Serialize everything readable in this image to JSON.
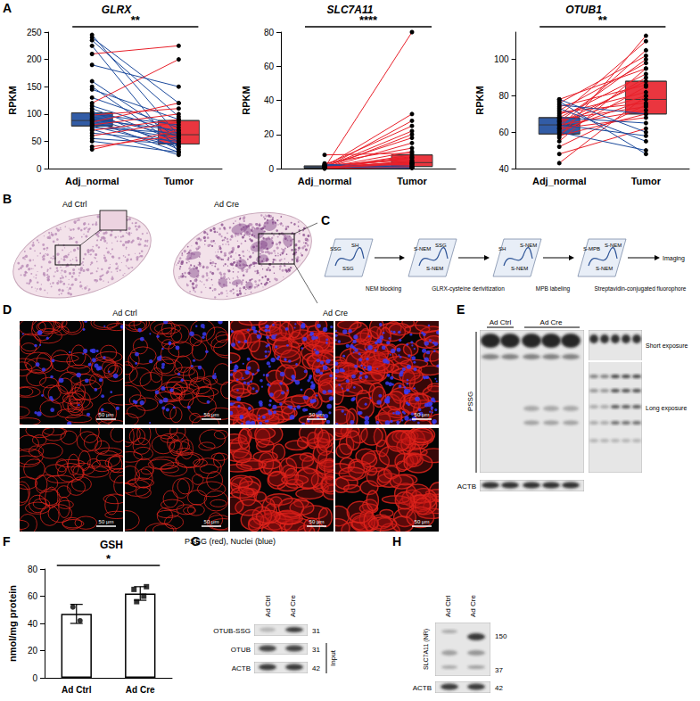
{
  "chart_data": [
    {
      "type": "box",
      "panel": "A",
      "title": "GLRX",
      "y_label": "RPKM",
      "categories": [
        "Adj_normal",
        "Tumor"
      ],
      "colors": [
        "#1c4a9c",
        "#e8202a"
      ],
      "ylim": [
        0,
        250
      ],
      "yticks": [
        0,
        50,
        100,
        150,
        200,
        250
      ],
      "box": [
        [
          78,
          88,
          102
        ],
        [
          45,
          62,
          88
        ]
      ],
      "pairs": [
        [
          245,
          60
        ],
        [
          240,
          120
        ],
        [
          235,
          95
        ],
        [
          225,
          30
        ],
        [
          210,
          225
        ],
        [
          190,
          150
        ],
        [
          160,
          55
        ],
        [
          150,
          40
        ],
        [
          145,
          90
        ],
        [
          130,
          75
        ],
        [
          120,
          200
        ],
        [
          115,
          65
        ],
        [
          110,
          50
        ],
        [
          105,
          35
        ],
        [
          100,
          80
        ],
        [
          98,
          110
        ],
        [
          95,
          60
        ],
        [
          92,
          45
        ],
        [
          90,
          70
        ],
        [
          88,
          30
        ],
        [
          85,
          120
        ],
        [
          82,
          55
        ],
        [
          80,
          100
        ],
        [
          78,
          40
        ],
        [
          75,
          65
        ],
        [
          72,
          25
        ],
        [
          70,
          90
        ],
        [
          65,
          50
        ],
        [
          60,
          85
        ],
        [
          55,
          45
        ],
        [
          50,
          30
        ],
        [
          40,
          60
        ],
        [
          35,
          70
        ]
      ],
      "significance": "**"
    },
    {
      "type": "box",
      "title": "SLC7A11",
      "y_label": "RPKM",
      "categories": [
        "Adj_normal",
        "Tumor"
      ],
      "colors": [
        "#1c4a9c",
        "#e8202a"
      ],
      "ylim": [
        0,
        80
      ],
      "yticks": [
        0,
        20,
        40,
        60,
        80
      ],
      "box": [
        [
          0.3,
          0.6,
          1.5
        ],
        [
          1.2,
          3.5,
          8
        ]
      ],
      "pairs": [
        [
          0.5,
          80
        ],
        [
          1,
          32
        ],
        [
          0.3,
          28
        ],
        [
          2,
          25
        ],
        [
          0.8,
          22
        ],
        [
          0.2,
          20
        ],
        [
          1.5,
          18
        ],
        [
          0.4,
          15
        ],
        [
          3,
          12
        ],
        [
          0.6,
          10
        ],
        [
          8,
          9
        ],
        [
          0.1,
          8
        ],
        [
          1,
          7
        ],
        [
          0.5,
          6
        ],
        [
          2,
          5
        ],
        [
          0.3,
          4.5
        ],
        [
          0.7,
          4
        ],
        [
          1.2,
          3.5
        ],
        [
          0.2,
          3
        ],
        [
          0.9,
          2.5
        ],
        [
          0.4,
          2
        ],
        [
          1.8,
          1.5
        ],
        [
          0.6,
          1.2
        ],
        [
          0.3,
          1
        ],
        [
          2.5,
          0.8
        ],
        [
          0.1,
          0.5
        ],
        [
          1,
          0.3
        ],
        [
          0.5,
          2.8
        ],
        [
          0.2,
          6.5
        ],
        [
          0.8,
          3.2
        ]
      ],
      "significance": "****"
    },
    {
      "type": "box",
      "title": "OTUB1",
      "y_label": "RPKM",
      "categories": [
        "Adj_normal",
        "Tumor"
      ],
      "colors": [
        "#1c4a9c",
        "#e8202a"
      ],
      "ylim": [
        40,
        115
      ],
      "yticks": [
        40,
        60,
        80,
        100
      ],
      "box": [
        [
          59,
          64,
          68
        ],
        [
          70,
          78,
          88
        ]
      ],
      "pairs": [
        [
          43,
          80
        ],
        [
          48,
          62
        ],
        [
          52,
          75
        ],
        [
          55,
          95
        ],
        [
          57,
          113
        ],
        [
          58,
          70
        ],
        [
          59,
          85
        ],
        [
          60,
          50
        ],
        [
          61,
          78
        ],
        [
          62,
          90
        ],
        [
          62,
          68
        ],
        [
          63,
          105
        ],
        [
          64,
          72
        ],
        [
          64,
          58
        ],
        [
          65,
          88
        ],
        [
          66,
          80
        ],
        [
          66,
          100
        ],
        [
          67,
          74
        ],
        [
          68,
          92
        ],
        [
          68,
          65
        ],
        [
          69,
          110
        ],
        [
          70,
          82
        ],
        [
          71,
          76
        ],
        [
          72,
          98
        ],
        [
          73,
          55
        ],
        [
          74,
          86
        ],
        [
          75,
          70
        ],
        [
          76,
          102
        ],
        [
          77,
          48
        ],
        [
          78,
          95
        ],
        [
          78,
          60
        ]
      ],
      "significance": "**"
    },
    {
      "type": "bar",
      "panel": "F",
      "title": "GSH",
      "y_label": "nmol/mg protein",
      "categories": [
        "Ad Ctrl",
        "Ad Cre"
      ],
      "values": [
        47,
        62
      ],
      "errors": [
        7,
        5
      ],
      "ylim": [
        0,
        80
      ],
      "yticks": [
        0,
        20,
        40,
        60,
        80
      ],
      "points": [
        {
          "category": "Ad Ctrl",
          "marker": "circle",
          "values": [
            52,
            42
          ]
        },
        {
          "category": "Ad Cre",
          "marker": "square",
          "values": [
            56,
            60,
            65,
            67
          ]
        }
      ],
      "significance": "*"
    }
  ],
  "panels": {
    "B": {
      "letter": "B",
      "labels": [
        "Ad Ctrl",
        "Ad Cre"
      ]
    },
    "C": {
      "letter": "C",
      "steps": [
        "NEM blocking",
        "GLRX-cysteine derivitization",
        "MPB labeling",
        "Streptavidin-conjugated fluorophore",
        "Imaging"
      ],
      "slides": [
        [
          "SSG",
          "SH",
          "SSG"
        ],
        [
          "S-NEM",
          "SSG",
          "S-NEM"
        ],
        [
          "SH",
          "S-NEM",
          "S-NEM"
        ],
        [
          "S-MPB",
          "S-NEM",
          "S-NEM"
        ]
      ]
    },
    "D": {
      "letter": "D",
      "groups": [
        "Ad Ctrl",
        "Ad Cre"
      ],
      "scale_bar": "50 μm",
      "caption": "PSSG (red), Nuclei (blue)"
    },
    "E": {
      "letter": "E",
      "groups": [
        "Ad Ctrl",
        "Ad Cre"
      ],
      "rows": [
        "PSSG",
        "ACTB"
      ],
      "exposures": [
        "Short exposure",
        "Long exposure"
      ]
    },
    "G": {
      "letter": "G",
      "groups": [
        "Ad Ctrl",
        "Ad Cre"
      ],
      "rows": [
        {
          "label": "OTUB-SSG",
          "kDa": 31
        },
        {
          "label": "OTUB",
          "kDa": 31
        },
        {
          "label": "ACTB",
          "kDa": 42
        }
      ],
      "bracket": "Input"
    },
    "H": {
      "letter": "H",
      "groups": [
        "Ad Ctrl",
        "Ad Cre"
      ],
      "label": "SLC7A11 (NR)",
      "markers": [
        150,
        37
      ],
      "loading": {
        "label": "ACTB",
        "kDa": 42
      }
    }
  }
}
